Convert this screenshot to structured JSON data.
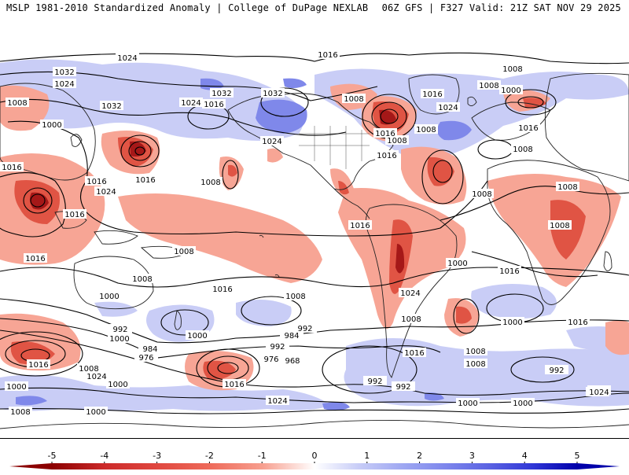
{
  "header": {
    "left": "MSLP 1981-2010 Standardized Anomaly | College of DuPage NEXLAB",
    "right": "06Z GFS | F327 Valid: 21Z SAT NOV 29 2025"
  },
  "map": {
    "product": "MSLP standardized anomaly with isobars",
    "pressure_labels": [
      "1024",
      "1032",
      "1024",
      "1008",
      "1032",
      "1024",
      "1016",
      "1032",
      "1032",
      "1016",
      "1008",
      "1024",
      "1016",
      "1008",
      "1000",
      "1008",
      "1024",
      "1000",
      "1016",
      "1016",
      "1024",
      "1016",
      "1016",
      "1008",
      "1008",
      "1016",
      "1008",
      "1016",
      "1008",
      "1016",
      "1008",
      "1008",
      "1008",
      "1008",
      "1016",
      "1016",
      "1008",
      "1000",
      "1024",
      "1016",
      "1016",
      "1008",
      "1000",
      "1000",
      "992",
      "984",
      "992",
      "984",
      "976",
      "976",
      "968",
      "992",
      "1000",
      "1008",
      "1024",
      "1016",
      "1016",
      "1000",
      "992",
      "1000",
      "1008",
      "1000",
      "1008",
      "1024",
      "992",
      "1016",
      "1008",
      "1008",
      "1000",
      "992",
      "1016",
      "1024",
      "1000",
      "1000"
    ]
  },
  "colorbar": {
    "ticks": [
      "-5",
      "-4",
      "-3",
      "-2",
      "-1",
      "0",
      "1",
      "2",
      "3",
      "4",
      "5"
    ],
    "negative_colors": [
      "#8b0000",
      "#cc2a2a",
      "#e0473f",
      "#ee6a5a",
      "#f79e8e",
      "#ffffff"
    ],
    "positive_colors": [
      "#ffffff",
      "#c8cdf7",
      "#9fa8f2",
      "#7d86ec",
      "#5a62e2",
      "#2f36d6",
      "#0000aa"
    ]
  },
  "colors": {
    "deep_negative": "#cc2a2a",
    "negative": "#f08b7a",
    "light_negative": "#fbc9bd",
    "positive": "#c9cdf6",
    "strong_positive": "#7f88ea",
    "land_border": "#222222"
  }
}
